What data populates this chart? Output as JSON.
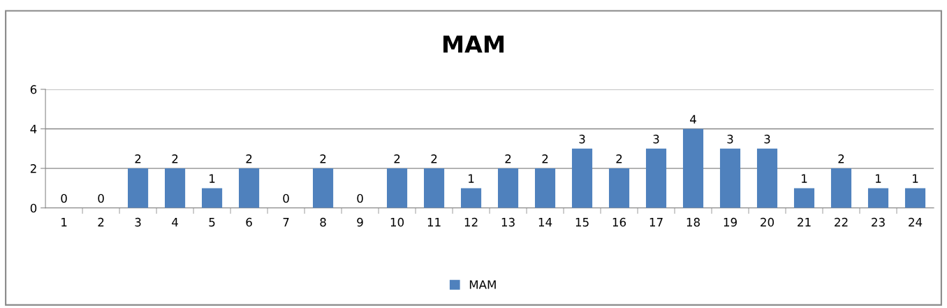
{
  "chart_data": {
    "type": "bar",
    "title": "MAM",
    "categories": [
      "1",
      "2",
      "3",
      "4",
      "5",
      "6",
      "7",
      "8",
      "9",
      "10",
      "11",
      "12",
      "13",
      "14",
      "15",
      "16",
      "17",
      "18",
      "19",
      "20",
      "21",
      "22",
      "23",
      "24"
    ],
    "series": [
      {
        "name": "MAM",
        "color": "#4f81bd",
        "values": [
          0,
          0,
          2,
          2,
          1,
          2,
          0,
          2,
          0,
          2,
          2,
          1,
          2,
          2,
          3,
          2,
          3,
          4,
          3,
          3,
          1,
          2,
          1,
          1
        ]
      }
    ],
    "ylim": [
      0,
      6
    ],
    "yticks": [
      0,
      2,
      4,
      6
    ],
    "grid": "y",
    "legend": "bottom",
    "data_labels": true
  }
}
